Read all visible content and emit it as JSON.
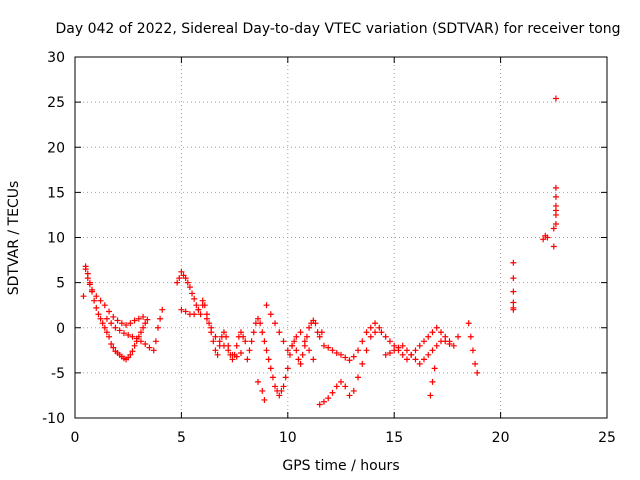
{
  "chart_data": {
    "type": "scatter",
    "title": "Day 042 of 2022, Sidereal Day-to-day VTEC variation (SDTVAR) for receiver tong",
    "xlabel": "GPS time / hours",
    "ylabel": "SDTVAR / TECUs",
    "xlim": [
      0,
      25
    ],
    "ylim": [
      -10,
      30
    ],
    "xticks": [
      0,
      5,
      10,
      15,
      20,
      25
    ],
    "yticks": [
      -10,
      -5,
      0,
      5,
      10,
      15,
      20,
      25,
      30
    ],
    "grid": true,
    "marker": "+",
    "color": "#ff0000",
    "series": [
      {
        "name": "SDTVAR",
        "x": [
          0.4,
          0.5,
          0.6,
          0.7,
          0.8,
          0.9,
          1.0,
          1.1,
          1.2,
          1.3,
          1.4,
          1.5,
          1.6,
          1.7,
          1.8,
          1.9,
          2.0,
          2.1,
          2.2,
          2.3,
          2.4,
          2.5,
          2.6,
          2.7,
          2.8,
          2.9,
          3.0,
          3.1,
          3.2,
          3.3,
          3.4,
          0.5,
          0.6,
          0.7,
          0.8,
          1.0,
          1.2,
          1.4,
          1.6,
          1.8,
          2.0,
          2.2,
          2.4,
          2.6,
          2.8,
          3.0,
          3.2,
          1.5,
          1.7,
          1.9,
          2.1,
          2.3,
          2.5,
          2.7,
          2.9,
          3.1,
          3.3,
          3.5,
          3.7,
          3.8,
          3.9,
          4.0,
          4.1,
          4.8,
          4.9,
          5.0,
          5.1,
          5.2,
          5.3,
          5.4,
          5.5,
          5.6,
          5.7,
          5.8,
          5.9,
          6.0,
          6.1,
          6.2,
          6.3,
          6.4,
          6.5,
          6.6,
          6.7,
          6.8,
          6.9,
          7.0,
          7.1,
          7.2,
          7.3,
          7.4,
          7.5,
          7.6,
          7.7,
          7.8,
          7.9,
          8.0,
          5.0,
          5.2,
          5.4,
          5.6,
          5.8,
          6.0,
          6.2,
          6.4,
          6.6,
          6.8,
          7.0,
          7.2,
          7.4,
          7.6,
          7.8,
          8.1,
          8.2,
          8.3,
          8.4,
          8.5,
          8.6,
          8.7,
          8.8,
          8.9,
          9.0,
          9.1,
          9.2,
          9.3,
          9.4,
          9.5,
          9.6,
          9.7,
          9.8,
          9.9,
          10.0,
          10.1,
          10.2,
          10.3,
          10.4,
          10.5,
          10.6,
          10.7,
          10.8,
          10.9,
          11.0,
          11.1,
          11.2,
          11.3,
          11.4,
          11.5,
          11.6,
          9.0,
          9.2,
          9.4,
          9.6,
          9.8,
          10.0,
          10.2,
          10.4,
          10.6,
          10.8,
          11.0,
          11.2,
          8.6,
          8.8,
          8.9,
          11.5,
          11.7,
          11.9,
          12.1,
          12.3,
          12.5,
          12.7,
          12.9,
          13.1,
          13.3,
          13.5,
          13.7,
          13.9,
          14.1,
          14.3,
          11.7,
          11.9,
          12.1,
          12.3,
          12.5,
          12.7,
          12.9,
          13.1,
          13.3,
          13.5,
          13.7,
          13.9,
          14.1,
          14.4,
          14.6,
          14.8,
          15.0,
          15.2,
          15.4,
          15.6,
          15.8,
          16.0,
          16.2,
          16.4,
          16.6,
          16.8,
          17.0,
          17.2,
          17.4,
          17.6,
          17.8,
          18.0,
          14.6,
          14.8,
          15.0,
          15.2,
          15.4,
          15.6,
          15.8,
          16.0,
          16.2,
          16.4,
          16.6,
          16.8,
          17.0,
          17.2,
          17.4,
          17.6,
          16.7,
          16.8,
          16.9,
          18.5,
          18.6,
          18.7,
          18.8,
          18.9,
          20.6,
          20.6,
          20.6,
          20.6,
          20.6,
          20.6,
          22.0,
          22.1,
          22.2,
          22.5,
          22.5,
          22.6,
          22.6,
          22.6,
          22.6,
          22.6,
          22.6,
          22.6
        ],
        "y": [
          3.5,
          6.8,
          6.0,
          5.0,
          4.0,
          3.0,
          2.2,
          1.5,
          1.0,
          0.5,
          0.0,
          -0.5,
          -1.0,
          -1.8,
          -2.2,
          -2.6,
          -2.8,
          -3.0,
          -3.2,
          -3.4,
          -3.5,
          -3.3,
          -3.0,
          -2.6,
          -2.0,
          -1.5,
          -1.0,
          -0.5,
          0.0,
          0.5,
          0.9,
          6.5,
          5.5,
          4.8,
          4.2,
          3.5,
          3.0,
          2.5,
          1.8,
          1.2,
          0.8,
          0.5,
          0.3,
          0.5,
          0.8,
          1.0,
          1.2,
          1.0,
          0.5,
          0.0,
          -0.3,
          -0.6,
          -0.8,
          -1.0,
          -1.2,
          -1.5,
          -1.8,
          -2.2,
          -2.5,
          -1.5,
          0.0,
          1.0,
          2.0,
          5.0,
          5.5,
          6.2,
          5.8,
          5.5,
          5.0,
          4.5,
          3.8,
          3.2,
          2.5,
          2.0,
          1.5,
          3.0,
          2.5,
          1.5,
          0.5,
          -0.5,
          -1.5,
          -2.5,
          -3.0,
          -2.0,
          -1.0,
          -0.5,
          -1.0,
          -2.0,
          -3.0,
          -3.5,
          -3.0,
          -2.0,
          -1.0,
          -0.5,
          -1.0,
          -1.5,
          2.0,
          1.8,
          1.5,
          1.5,
          2.0,
          2.5,
          1.0,
          0.0,
          -1.0,
          -1.5,
          -2.0,
          -2.5,
          -3.0,
          -3.2,
          -2.8,
          -3.5,
          -2.5,
          -1.5,
          -0.5,
          0.5,
          1.0,
          0.5,
          -0.5,
          -1.5,
          -2.5,
          -3.5,
          -4.5,
          -5.5,
          -6.5,
          -7.0,
          -7.5,
          -7.0,
          -6.5,
          -5.5,
          -4.5,
          -3.0,
          -2.0,
          -1.5,
          -2.5,
          -3.5,
          -4.0,
          -3.0,
          -2.0,
          -1.0,
          0.0,
          0.5,
          0.8,
          0.5,
          -0.5,
          -1.0,
          -0.5,
          2.5,
          1.5,
          0.5,
          -0.5,
          -1.5,
          -2.5,
          -2.0,
          -1.0,
          -0.5,
          -1.5,
          -2.5,
          -3.5,
          -6.0,
          -7.0,
          -8.0,
          -8.5,
          -8.2,
          -7.8,
          -7.2,
          -6.5,
          -6.0,
          -6.5,
          -7.5,
          -7.0,
          -5.5,
          -4.0,
          -2.5,
          -1.0,
          -0.5,
          0.0,
          -2.0,
          -2.2,
          -2.5,
          -2.8,
          -3.0,
          -3.3,
          -3.6,
          -3.2,
          -2.5,
          -1.5,
          -0.5,
          0.0,
          0.5,
          -0.5,
          -1.0,
          -1.5,
          -2.0,
          -2.5,
          -3.0,
          -3.5,
          -3.0,
          -2.5,
          -2.0,
          -1.5,
          -1.0,
          -0.5,
          0.0,
          -0.5,
          -1.0,
          -1.5,
          -2.0,
          -1.0,
          -3.0,
          -2.8,
          -2.5,
          -2.2,
          -2.0,
          -2.5,
          -3.0,
          -3.5,
          -4.0,
          -3.5,
          -3.0,
          -2.5,
          -2.0,
          -1.5,
          -1.5,
          -1.8,
          -7.5,
          -6.0,
          -4.5,
          0.5,
          -1.0,
          -2.5,
          -4.0,
          -5.0,
          7.2,
          5.5,
          4.0,
          2.8,
          2.2,
          2.0,
          9.8,
          10.2,
          10.0,
          9.0,
          11.0,
          12.5,
          13.5,
          14.5,
          15.5,
          13.0,
          11.5,
          25.4
        ]
      }
    ]
  }
}
